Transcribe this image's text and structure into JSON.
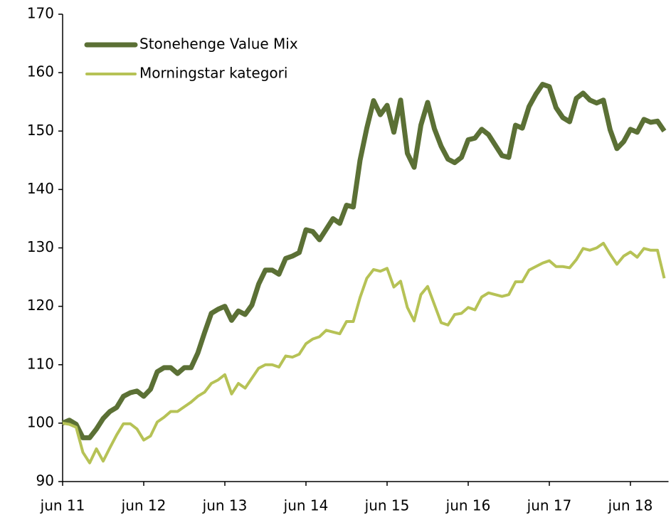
{
  "chart_data": {
    "type": "line",
    "categories": [
      "jun 11",
      null,
      null,
      null,
      null,
      null,
      null,
      null,
      null,
      null,
      null,
      null,
      "jun 12",
      null,
      null,
      null,
      null,
      null,
      null,
      null,
      null,
      null,
      null,
      null,
      "jun 13",
      null,
      null,
      null,
      null,
      null,
      null,
      null,
      null,
      null,
      null,
      null,
      "jun 14",
      null,
      null,
      null,
      null,
      null,
      null,
      null,
      null,
      null,
      null,
      null,
      "jun 15",
      null,
      null,
      null,
      null,
      null,
      null,
      null,
      null,
      null,
      null,
      null,
      "jun 16",
      null,
      null,
      null,
      null,
      null,
      null,
      null,
      null,
      null,
      null,
      null,
      "jun 17",
      null,
      null,
      null,
      null,
      null,
      null,
      null,
      null,
      null,
      null,
      null,
      "jun 18",
      null,
      null,
      null,
      null,
      null
    ],
    "series": [
      {
        "name": "Stonehenge Value Mix",
        "color": "#5b7035",
        "values": [
          100,
          100.5,
          99.8,
          97.5,
          97.5,
          99,
          100.8,
          102,
          102.7,
          104.6,
          105.2,
          105.5,
          104.6,
          105.8,
          108.8,
          109.5,
          109.5,
          108.5,
          109.5,
          109.5,
          112,
          115.5,
          118.8,
          119.5,
          120,
          117.6,
          119.2,
          118.6,
          120.2,
          123.8,
          126.2,
          126.2,
          125.5,
          128.2,
          128.6,
          129.2,
          133.1,
          132.8,
          131.4,
          133.2,
          135,
          134.2,
          137.3,
          137,
          145,
          150.5,
          155.2,
          152.8,
          154.4,
          149.8,
          155.3,
          146.2,
          143.8,
          151,
          154.9,
          150.4,
          147.4,
          145.2,
          144.6,
          145.5,
          148.5,
          148.8,
          150.3,
          149.4,
          147.6,
          145.8,
          145.5,
          151,
          150.5,
          154.2,
          156.3,
          158,
          157.6,
          154,
          152.3,
          151.6,
          155.6,
          156.5,
          155.3,
          154.8,
          155.3,
          150.2,
          147,
          148.2,
          150.3,
          149.8,
          152,
          151.5,
          151.7,
          150
        ]
      },
      {
        "name": "Morningstar kategori",
        "color": "#b6c256",
        "values": [
          100,
          99.8,
          99.3,
          95,
          93.2,
          95.6,
          93.5,
          95.8,
          98,
          99.9,
          99.9,
          99,
          97.1,
          97.8,
          100.2,
          101,
          102,
          102,
          102.8,
          103.6,
          104.6,
          105.3,
          106.8,
          107.4,
          108.3,
          105,
          106.8,
          106,
          107.7,
          109.4,
          110,
          110,
          109.6,
          111.5,
          111.3,
          111.8,
          113.6,
          114.4,
          114.8,
          115.9,
          115.6,
          115.3,
          117.4,
          117.4,
          121.5,
          124.8,
          126.3,
          126,
          126.5,
          123.3,
          124.3,
          119.8,
          117.5,
          122,
          123.4,
          120.3,
          117.2,
          116.8,
          118.6,
          118.8,
          119.8,
          119.4,
          121.6,
          122.3,
          122,
          121.7,
          122,
          124.2,
          124.2,
          126.2,
          126.8,
          127.4,
          127.8,
          126.8,
          126.8,
          126.6,
          128,
          129.9,
          129.6,
          130,
          130.8,
          128.9,
          127.2,
          128.6,
          129.3,
          128.4,
          129.9,
          129.6,
          129.6,
          124.8
        ]
      }
    ],
    "ylim": [
      90,
      170
    ],
    "yticks": [
      90,
      100,
      110,
      120,
      130,
      140,
      150,
      160,
      170
    ],
    "legend": "top-left"
  }
}
